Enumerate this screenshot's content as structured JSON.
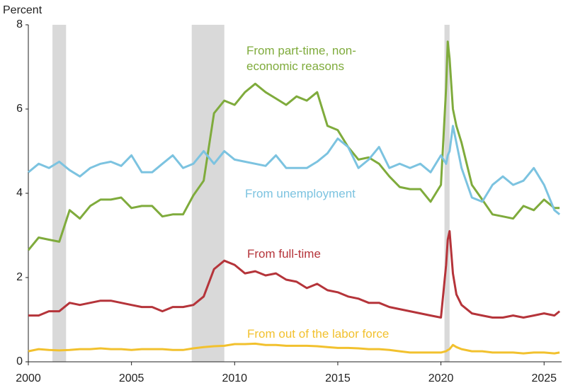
{
  "chart_data": {
    "type": "line",
    "y_label": "Percent",
    "x": [
      2000,
      2000.5,
      2001,
      2001.5,
      2002,
      2002.5,
      2003,
      2003.5,
      2004,
      2004.5,
      2005,
      2005.5,
      2006,
      2006.5,
      2007,
      2007.5,
      2008,
      2008.5,
      2009,
      2009.5,
      2010,
      2010.5,
      2011,
      2011.5,
      2012,
      2012.5,
      2013,
      2013.5,
      2014,
      2014.5,
      2015,
      2015.5,
      2016,
      2016.5,
      2017,
      2017.5,
      2018,
      2018.5,
      2019,
      2019.5,
      2020,
      2020.25,
      2020.33,
      2020.42,
      2020.58,
      2020.75,
      2021,
      2021.5,
      2022,
      2022.5,
      2023,
      2023.5,
      2024,
      2024.5,
      2025,
      2025.5,
      2025.75
    ],
    "series": [
      {
        "name": "From part-time, non-economic reasons",
        "color": "#7fab3c",
        "values": [
          2.65,
          2.95,
          2.9,
          2.85,
          3.6,
          3.4,
          3.7,
          3.85,
          3.85,
          3.9,
          3.65,
          3.7,
          3.7,
          3.45,
          3.5,
          3.5,
          3.95,
          4.3,
          5.9,
          6.2,
          6.1,
          6.4,
          6.6,
          6.4,
          6.25,
          6.1,
          6.3,
          6.2,
          6.4,
          5.6,
          5.5,
          5.1,
          4.8,
          4.85,
          4.7,
          4.4,
          4.15,
          4.1,
          4.1,
          3.8,
          4.2,
          6.5,
          7.6,
          7.2,
          6.0,
          5.6,
          5.2,
          4.2,
          3.85,
          3.5,
          3.45,
          3.4,
          3.7,
          3.6,
          3.85,
          3.65,
          3.65
        ]
      },
      {
        "name": "From unemployment",
        "color": "#7cc3e0",
        "values": [
          4.5,
          4.7,
          4.6,
          4.75,
          4.55,
          4.4,
          4.6,
          4.7,
          4.75,
          4.65,
          4.9,
          4.5,
          4.5,
          4.7,
          4.9,
          4.6,
          4.7,
          5.0,
          4.7,
          5.0,
          4.8,
          4.75,
          4.7,
          4.65,
          4.9,
          4.6,
          4.6,
          4.6,
          4.75,
          4.95,
          5.3,
          5.1,
          4.6,
          4.8,
          5.1,
          4.6,
          4.7,
          4.6,
          4.7,
          4.5,
          4.9,
          4.7,
          4.9,
          5.0,
          5.6,
          5.2,
          4.6,
          3.9,
          3.8,
          4.2,
          4.4,
          4.2,
          4.3,
          4.6,
          4.2,
          3.6,
          3.5
        ]
      },
      {
        "name": "From full-time",
        "color": "#b5343a",
        "values": [
          1.1,
          1.1,
          1.2,
          1.2,
          1.4,
          1.35,
          1.4,
          1.45,
          1.45,
          1.4,
          1.35,
          1.3,
          1.3,
          1.2,
          1.3,
          1.3,
          1.35,
          1.55,
          2.2,
          2.4,
          2.3,
          2.1,
          2.15,
          2.05,
          2.1,
          1.95,
          1.9,
          1.75,
          1.85,
          1.7,
          1.65,
          1.55,
          1.5,
          1.4,
          1.4,
          1.3,
          1.25,
          1.2,
          1.15,
          1.1,
          1.05,
          2.3,
          2.9,
          3.1,
          2.1,
          1.6,
          1.35,
          1.15,
          1.1,
          1.05,
          1.05,
          1.1,
          1.05,
          1.1,
          1.15,
          1.1,
          1.2
        ]
      },
      {
        "name": "From out of the labor force",
        "color": "#f2c12e",
        "values": [
          0.25,
          0.3,
          0.28,
          0.27,
          0.28,
          0.3,
          0.3,
          0.32,
          0.3,
          0.3,
          0.28,
          0.3,
          0.3,
          0.3,
          0.28,
          0.28,
          0.32,
          0.35,
          0.37,
          0.38,
          0.42,
          0.42,
          0.43,
          0.4,
          0.4,
          0.38,
          0.38,
          0.38,
          0.37,
          0.35,
          0.33,
          0.33,
          0.32,
          0.3,
          0.3,
          0.28,
          0.25,
          0.22,
          0.22,
          0.22,
          0.22,
          0.25,
          0.28,
          0.3,
          0.4,
          0.35,
          0.3,
          0.25,
          0.25,
          0.22,
          0.22,
          0.22,
          0.2,
          0.22,
          0.22,
          0.2,
          0.22
        ]
      }
    ],
    "recessions": [
      [
        2001.17,
        2001.83
      ],
      [
        2007.92,
        2009.5
      ],
      [
        2020.17,
        2020.42
      ]
    ],
    "recession_color": "#d9d9d9",
    "xlim": [
      2000,
      2025.85
    ],
    "xticks": [
      2000,
      2005,
      2010,
      2015,
      2020,
      2025
    ],
    "ylim": [
      0,
      8
    ],
    "yticks": [
      0,
      2,
      4,
      6,
      8
    ]
  }
}
